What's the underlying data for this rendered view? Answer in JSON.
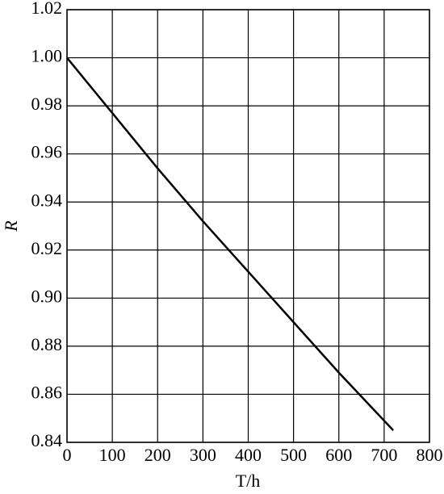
{
  "chart_data": {
    "type": "line",
    "x_label": "T/h",
    "y_label": "R",
    "x": [
      0,
      100,
      200,
      300,
      400,
      500,
      600,
      700,
      720
    ],
    "series": [
      {
        "name": "R",
        "color": "#000000",
        "values": [
          1,
          0.977,
          0.954,
          0.932,
          0.911,
          0.89,
          0.869,
          0.849,
          0.845
        ]
      }
    ],
    "xlim": [
      0,
      800
    ],
    "xticks": [
      0,
      100,
      200,
      300,
      400,
      500,
      600,
      700,
      800
    ],
    "ylim": [
      0.84,
      1.02
    ],
    "yticks": [
      0.84,
      0.86,
      0.88,
      {
        "value": 0.9,
        "label": "0.90"
      },
      0.92,
      0.94,
      0.96,
      0.98,
      {
        "value": 1,
        "label": "1.00"
      },
      1.02
    ],
    "grid": true
  }
}
